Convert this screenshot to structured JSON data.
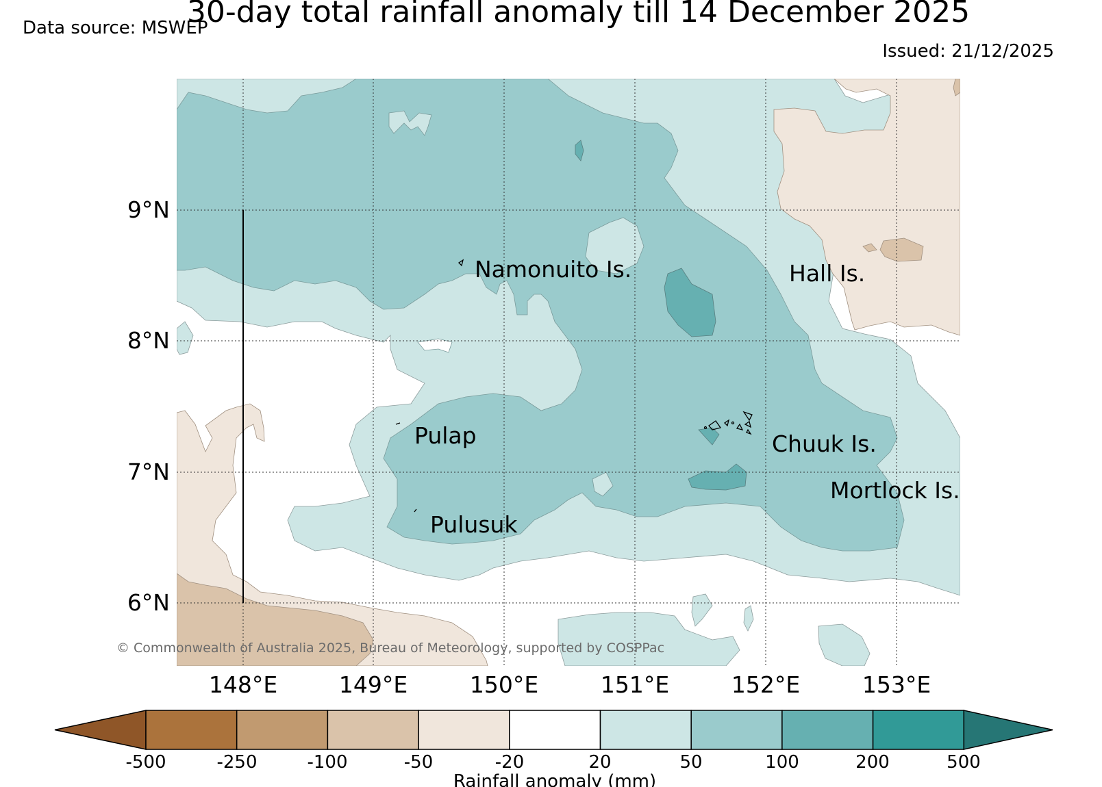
{
  "title": "30-day total rainfall anomaly till 14 December 2025",
  "data_source": "Data source: MSWEP",
  "issued": "Issued: 21/12/2025",
  "copyright": "© Commonwealth of Australia 2025, Bureau of Meteorology, supported by COSPPac",
  "map": {
    "lat_labels": [
      "9°N",
      "8°N",
      "7°N",
      "6°N"
    ],
    "lon_labels": [
      "148°E",
      "149°E",
      "150°E",
      "151°E",
      "152°E",
      "153°E"
    ],
    "places": [
      {
        "name": "Namonuito Is."
      },
      {
        "name": "Hall Is."
      },
      {
        "name": "Pulap"
      },
      {
        "name": "Chuuk Is."
      },
      {
        "name": "Mortlock Is."
      },
      {
        "name": "Pulusuk"
      }
    ]
  },
  "colorbar": {
    "title": "Rainfall anomaly (mm)",
    "ticks": [
      "-500",
      "-250",
      "-100",
      "-50",
      "-20",
      "20",
      "50",
      "100",
      "200",
      "500"
    ],
    "colors": {
      "below_min": "#8f5628",
      "bins": [
        "#ab733c",
        "#c19a70",
        "#dac3aa",
        "#f0e6dc",
        "#ffffff",
        "#cde6e5",
        "#9acbcc",
        "#66b0b1",
        "#319a97"
      ],
      "above_max": "#267675"
    }
  }
}
